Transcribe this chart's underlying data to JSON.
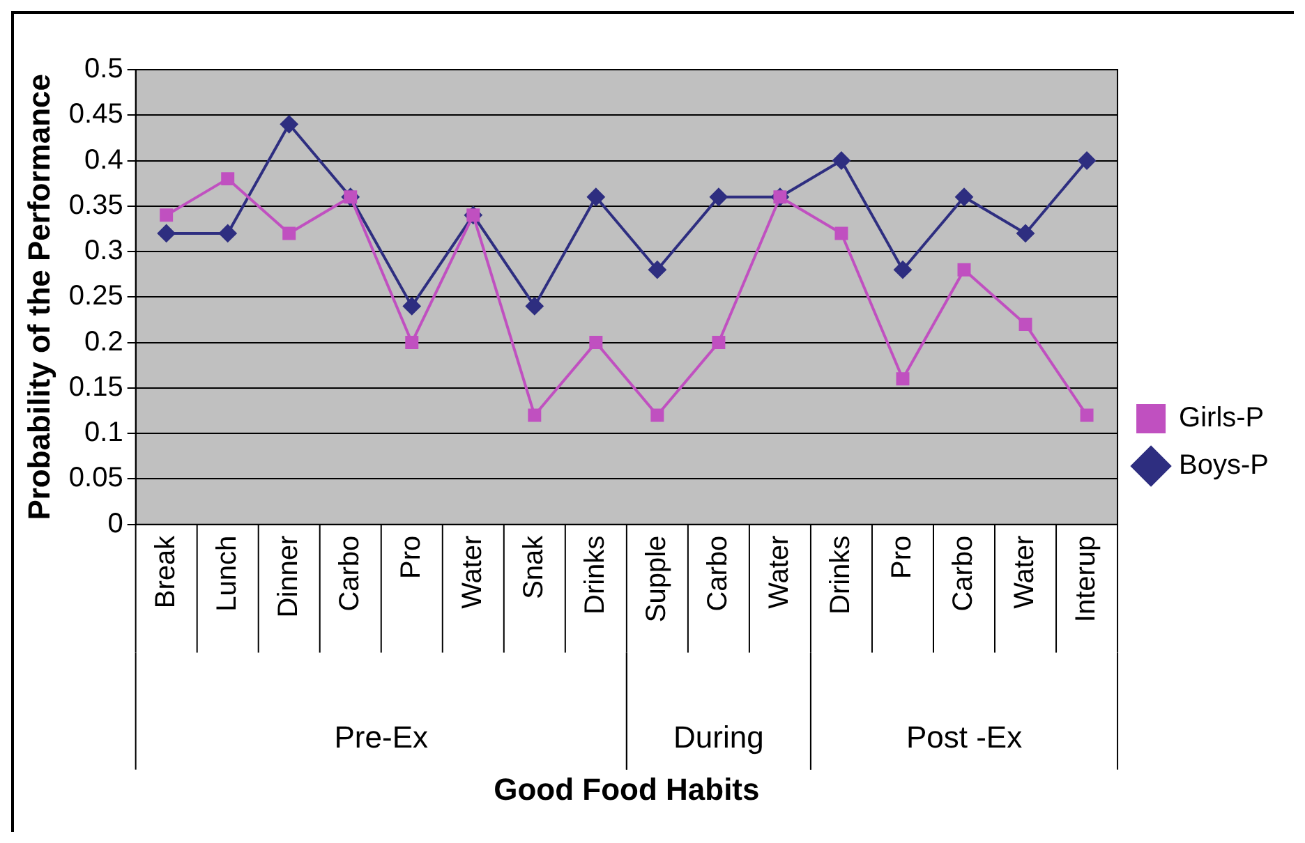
{
  "chart_data": {
    "type": "line",
    "xlabel": "Good Food Habits",
    "ylabel": "Probability of the Performance",
    "categories": [
      "Break",
      "Lunch",
      "Dinner",
      "Carbo",
      "Pro",
      "Water",
      "Snak",
      "Drinks",
      "Supple",
      "Carbo",
      "Water",
      "Drinks",
      "Pro",
      "Carbo",
      "Water",
      "Interup"
    ],
    "series": [
      {
        "name": "Boys-P",
        "color": "#2e2e80",
        "marker": "diamond",
        "values": [
          0.32,
          0.32,
          0.44,
          0.36,
          0.24,
          0.34,
          0.24,
          0.36,
          0.28,
          0.36,
          0.36,
          0.4,
          0.28,
          0.36,
          0.32,
          0.4
        ]
      },
      {
        "name": "Girls-P",
        "color": "#c050c0",
        "marker": "square",
        "values": [
          0.34,
          0.38,
          0.32,
          0.36,
          0.2,
          0.34,
          0.12,
          0.2,
          0.12,
          0.2,
          0.36,
          0.32,
          0.16,
          0.28,
          0.22,
          0.12
        ]
      }
    ],
    "annotations": [
      "Pre-Ex",
      "During",
      "Post -Ex"
    ],
    "ylim": [
      0,
      0.5
    ],
    "yticks": [
      0,
      0.05,
      0.1,
      0.15,
      0.2,
      0.25,
      0.3,
      0.35,
      0.4,
      0.45,
      0.5
    ],
    "grid": "y",
    "legend": "right"
  }
}
